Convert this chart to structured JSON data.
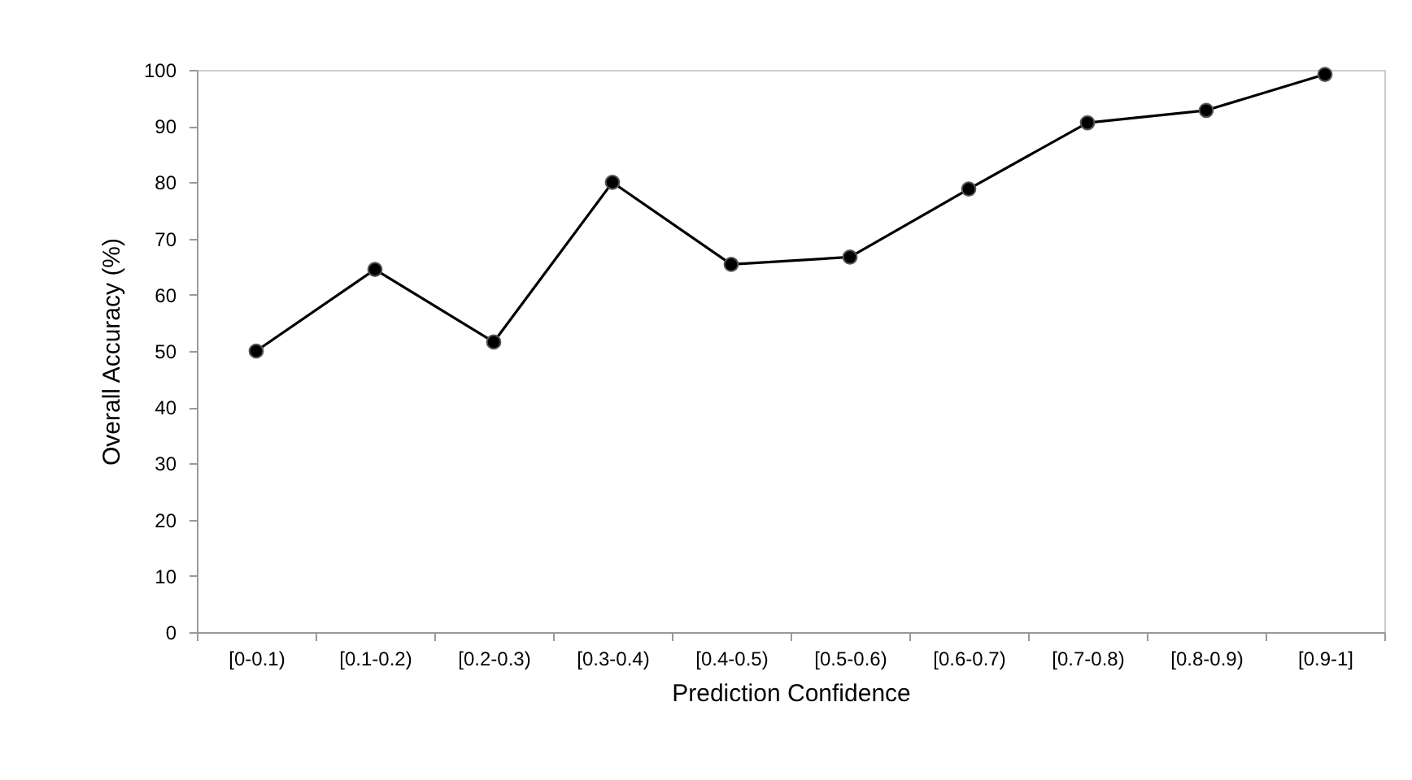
{
  "chart_data": {
    "type": "line",
    "xlabel": "Prediction Confidence",
    "ylabel": "Overall Accuracy (%)",
    "categories": [
      "[0-0.1)",
      "[0.1-0.2)",
      "[0.2-0.3)",
      "[0.3-0.4)",
      "[0.4-0.5)",
      "[0.5-0.6)",
      "[0.6-0.7)",
      "[0.7-0.8)",
      "[0.8-0.9)",
      "[0.9-1]"
    ],
    "series": [
      {
        "color": "#000000",
        "values": [
          50,
          64.5,
          51.6,
          80,
          65.4,
          66.7,
          78.8,
          90.6,
          92.8,
          99.2
        ]
      }
    ],
    "ylim": [
      0,
      100
    ],
    "yticks": [
      0,
      10,
      20,
      30,
      40,
      50,
      60,
      70,
      80,
      90,
      100
    ],
    "grid": false,
    "legend": false,
    "marker": "circle",
    "line_style": "solid"
  }
}
